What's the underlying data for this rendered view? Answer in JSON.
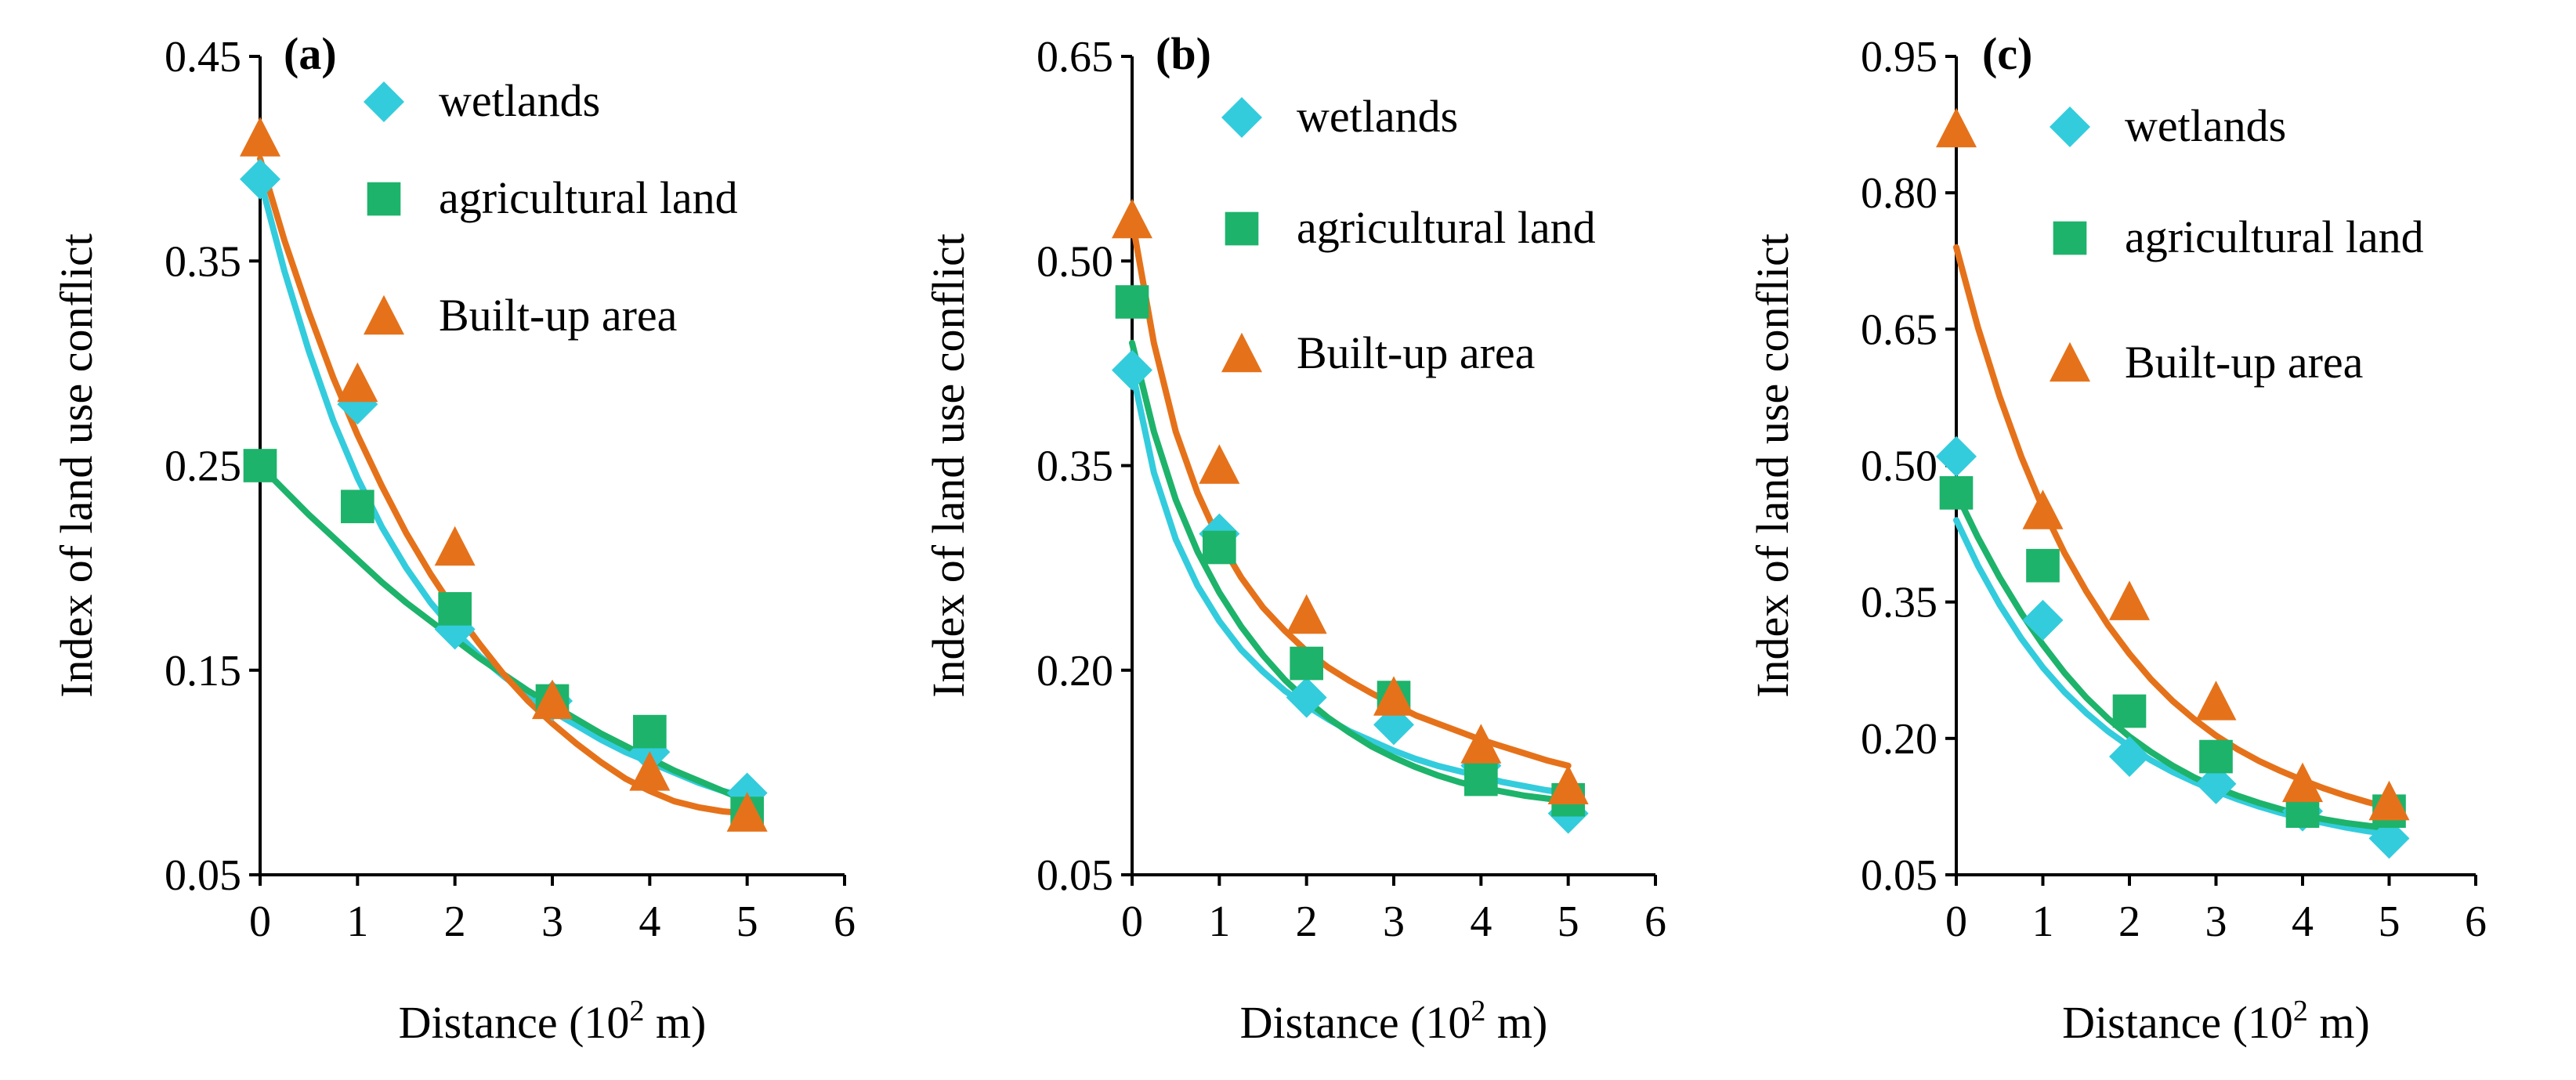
{
  "colors": {
    "wetlands": "#33CCDD",
    "agricultural": "#1DB36B",
    "builtup": "#E5721A",
    "axis": "#000000"
  },
  "chart_data": [
    {
      "type": "scatter",
      "panel_label": "(a)",
      "xlabel": "Distance (10",
      "xlabel_sup": "2",
      "xlabel_tail": " m)",
      "ylabel": "Index of land use conflict",
      "xlim": [
        0,
        6
      ],
      "ylim": [
        0.05,
        0.45
      ],
      "x_ticks": [
        "0",
        "1",
        "2",
        "3",
        "4",
        "5",
        "6"
      ],
      "y_ticks": [
        "0.05",
        "0.15",
        "0.25",
        "0.35",
        "0.45"
      ],
      "legend": [
        "wetlands",
        "agricultural land",
        "Built-up area"
      ],
      "series": [
        {
          "name": "wetlands",
          "marker": "diamond",
          "x": [
            0,
            1,
            2,
            3,
            4,
            5
          ],
          "y": [
            0.39,
            0.28,
            0.17,
            0.135,
            0.11,
            0.09
          ],
          "fit": [
            0.39,
            0.345,
            0.306,
            0.272,
            0.244,
            0.22,
            0.2,
            0.183,
            0.169,
            0.157,
            0.147,
            0.138,
            0.13,
            0.123,
            0.116,
            0.11,
            0.105,
            0.1,
            0.095,
            0.091,
            0.088
          ]
        },
        {
          "name": "agricultural land",
          "marker": "square",
          "x": [
            0,
            1,
            2,
            3,
            4,
            5
          ],
          "y": [
            0.25,
            0.23,
            0.18,
            0.135,
            0.12,
            0.08
          ],
          "fit": [
            0.25,
            0.238,
            0.226,
            0.215,
            0.204,
            0.193,
            0.183,
            0.174,
            0.165,
            0.156,
            0.148,
            0.14,
            0.133,
            0.126,
            0.119,
            0.113,
            0.107,
            0.101,
            0.096,
            0.091,
            0.086
          ]
        },
        {
          "name": "Built-up area",
          "marker": "triangle",
          "x": [
            0,
            1,
            2,
            3,
            4,
            5
          ],
          "y": [
            0.41,
            0.29,
            0.21,
            0.135,
            0.1,
            0.08
          ],
          "fit": [
            0.4,
            0.36,
            0.325,
            0.293,
            0.265,
            0.24,
            0.217,
            0.197,
            0.179,
            0.163,
            0.148,
            0.135,
            0.124,
            0.114,
            0.105,
            0.097,
            0.091,
            0.086,
            0.083,
            0.081,
            0.08
          ]
        }
      ]
    },
    {
      "type": "scatter",
      "panel_label": "(b)",
      "xlabel": "Distance (10",
      "xlabel_sup": "2",
      "xlabel_tail": " m)",
      "ylabel": "Index of land use conflict",
      "xlim": [
        0,
        6
      ],
      "ylim": [
        0.05,
        0.65
      ],
      "x_ticks": [
        "0",
        "1",
        "2",
        "3",
        "4",
        "5",
        "6"
      ],
      "y_ticks": [
        "0.05",
        "0.20",
        "0.35",
        "0.50",
        "0.65"
      ],
      "legend": [
        "wetlands",
        "agricultural land",
        "Built-up area"
      ],
      "series": [
        {
          "name": "wetlands",
          "marker": "diamond",
          "x": [
            0,
            1,
            2,
            3,
            4,
            5
          ],
          "y": [
            0.42,
            0.3,
            0.18,
            0.16,
            0.13,
            0.095
          ],
          "fit": [
            0.42,
            0.345,
            0.296,
            0.262,
            0.236,
            0.215,
            0.199,
            0.185,
            0.174,
            0.164,
            0.155,
            0.148,
            0.141,
            0.135,
            0.13,
            0.126,
            0.122,
            0.118,
            0.115,
            0.112,
            0.11
          ]
        },
        {
          "name": "agricultural land",
          "marker": "square",
          "x": [
            0,
            1,
            2,
            3,
            4,
            5
          ],
          "y": [
            0.47,
            0.29,
            0.205,
            0.18,
            0.12,
            0.105
          ],
          "fit": [
            0.44,
            0.375,
            0.325,
            0.287,
            0.257,
            0.232,
            0.211,
            0.193,
            0.178,
            0.165,
            0.154,
            0.144,
            0.136,
            0.129,
            0.123,
            0.118,
            0.114,
            0.111,
            0.108,
            0.106,
            0.104
          ]
        },
        {
          "name": "Built-up area",
          "marker": "triangle",
          "x": [
            0,
            1,
            2,
            3,
            4,
            5
          ],
          "y": [
            0.53,
            0.35,
            0.24,
            0.18,
            0.145,
            0.115
          ],
          "fit": [
            0.53,
            0.44,
            0.375,
            0.33,
            0.295,
            0.268,
            0.246,
            0.229,
            0.214,
            0.202,
            0.192,
            0.183,
            0.175,
            0.167,
            0.161,
            0.155,
            0.149,
            0.144,
            0.139,
            0.134,
            0.13
          ]
        }
      ]
    },
    {
      "type": "scatter",
      "panel_label": "(c)",
      "xlabel": "Distance (10",
      "xlabel_sup": "2",
      "xlabel_tail": " m)",
      "ylabel": "Index of land use conflict",
      "xlim": [
        0,
        6
      ],
      "ylim": [
        0.05,
        0.95
      ],
      "x_ticks": [
        "0",
        "1",
        "2",
        "3",
        "4",
        "5",
        "6"
      ],
      "y_ticks": [
        "0.05",
        "0.20",
        "0.35",
        "0.50",
        "0.65",
        "0.80",
        "0.95"
      ],
      "legend": [
        "wetlands",
        "agricultural land",
        "Built-up area"
      ],
      "series": [
        {
          "name": "wetlands",
          "marker": "diamond",
          "x": [
            0,
            1,
            2,
            3,
            4,
            5
          ],
          "y": [
            0.51,
            0.33,
            0.18,
            0.15,
            0.12,
            0.09
          ],
          "fit": [
            0.44,
            0.39,
            0.347,
            0.31,
            0.278,
            0.251,
            0.228,
            0.208,
            0.191,
            0.176,
            0.163,
            0.152,
            0.142,
            0.133,
            0.125,
            0.118,
            0.112,
            0.107,
            0.102,
            0.098,
            0.095
          ]
        },
        {
          "name": "agricultural land",
          "marker": "square",
          "x": [
            0,
            1,
            2,
            3,
            4,
            5
          ],
          "y": [
            0.47,
            0.39,
            0.23,
            0.18,
            0.12,
            0.12
          ],
          "fit": [
            0.47,
            0.421,
            0.377,
            0.338,
            0.303,
            0.272,
            0.245,
            0.222,
            0.202,
            0.185,
            0.17,
            0.157,
            0.146,
            0.137,
            0.129,
            0.122,
            0.116,
            0.111,
            0.107,
            0.104,
            0.101
          ]
        },
        {
          "name": "Built-up area",
          "marker": "triangle",
          "x": [
            0,
            1,
            2,
            3,
            4,
            5
          ],
          "y": [
            0.87,
            0.45,
            0.35,
            0.24,
            0.15,
            0.13
          ],
          "fit": [
            0.74,
            0.652,
            0.576,
            0.51,
            0.453,
            0.404,
            0.362,
            0.325,
            0.293,
            0.265,
            0.241,
            0.221,
            0.203,
            0.188,
            0.175,
            0.164,
            0.154,
            0.145,
            0.137,
            0.13,
            0.124
          ]
        }
      ]
    }
  ]
}
